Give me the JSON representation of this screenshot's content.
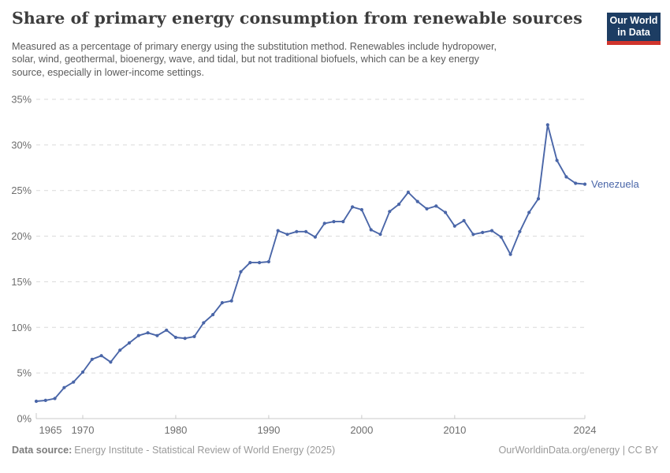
{
  "chart_data": {
    "type": "line",
    "title": "Share of primary energy consumption from renewable sources",
    "subtitle_lines": [
      "Measured as a percentage of primary energy using the substitution method. Renewables include hydropower,",
      "solar, wind, geothermal, bioenergy, wave, and tidal, but not traditional biofuels, which can be a key energy",
      "source, especially in lower-income settings."
    ],
    "entity": "Venezuela",
    "xlim": [
      1965,
      2024
    ],
    "ylim": [
      0,
      35
    ],
    "grid": "horizontal-dashed",
    "legend": "end-of-line-label",
    "x": [
      1965,
      1966,
      1967,
      1968,
      1969,
      1970,
      1971,
      1972,
      1973,
      1974,
      1975,
      1976,
      1977,
      1978,
      1979,
      1980,
      1981,
      1982,
      1983,
      1984,
      1985,
      1986,
      1987,
      1988,
      1989,
      1990,
      1991,
      1992,
      1993,
      1994,
      1995,
      1996,
      1997,
      1998,
      1999,
      2000,
      2001,
      2002,
      2003,
      2004,
      2005,
      2006,
      2007,
      2008,
      2009,
      2010,
      2011,
      2012,
      2013,
      2014,
      2015,
      2016,
      2017,
      2018,
      2019,
      2020,
      2021,
      2022,
      2023,
      2024
    ],
    "series": [
      {
        "name": "Venezuela",
        "color": "#4a66a8",
        "values": [
          1.9,
          2.0,
          2.2,
          3.4,
          4.0,
          5.1,
          6.5,
          6.9,
          6.2,
          7.5,
          8.3,
          9.1,
          9.4,
          9.1,
          9.7,
          8.9,
          8.8,
          9.0,
          10.5,
          11.4,
          12.7,
          12.9,
          16.1,
          17.1,
          17.1,
          17.2,
          20.6,
          20.2,
          20.5,
          20.5,
          19.9,
          21.4,
          21.6,
          21.6,
          23.2,
          22.9,
          20.7,
          20.2,
          22.7,
          23.5,
          24.8,
          23.8,
          23.0,
          23.3,
          22.6,
          21.1,
          21.7,
          20.2,
          20.4,
          20.6,
          19.9,
          18.0,
          20.5,
          22.6,
          24.1,
          32.2,
          28.3,
          26.5,
          25.8,
          25.7
        ]
      }
    ],
    "y_ticks": [
      {
        "value": 0,
        "label": "0%"
      },
      {
        "value": 5,
        "label": "5%"
      },
      {
        "value": 10,
        "label": "10%"
      },
      {
        "value": 15,
        "label": "15%"
      },
      {
        "value": 20,
        "label": "20%"
      },
      {
        "value": 25,
        "label": "25%"
      },
      {
        "value": 30,
        "label": "30%"
      },
      {
        "value": 35,
        "label": "35%"
      }
    ],
    "x_ticks": [
      {
        "value": 1965,
        "label": "1965"
      },
      {
        "value": 1970,
        "label": "1970"
      },
      {
        "value": 1980,
        "label": "1980"
      },
      {
        "value": 1990,
        "label": "1990"
      },
      {
        "value": 2000,
        "label": "2000"
      },
      {
        "value": 2010,
        "label": "2010"
      },
      {
        "value": 2024,
        "label": "2024"
      }
    ]
  },
  "logo": {
    "line1": "Our World",
    "line2": "in Data"
  },
  "footer": {
    "source_label": "Data source:",
    "source_text": "Energy Institute - Statistical Review of World Energy (2025)",
    "right_text": "OurWorldinData.org/energy | CC BY"
  },
  "colors": {
    "line": "#4a66a8",
    "logo_navy": "#1d3d63",
    "logo_red": "#d0342c",
    "gridline": "#dadada",
    "axis": "#c9c9c9",
    "tick_label": "#6e6e6e",
    "title_text": "#3d3d3d",
    "subtitle_text": "#5b5b5b",
    "footer_text": "#9a9a9a"
  }
}
